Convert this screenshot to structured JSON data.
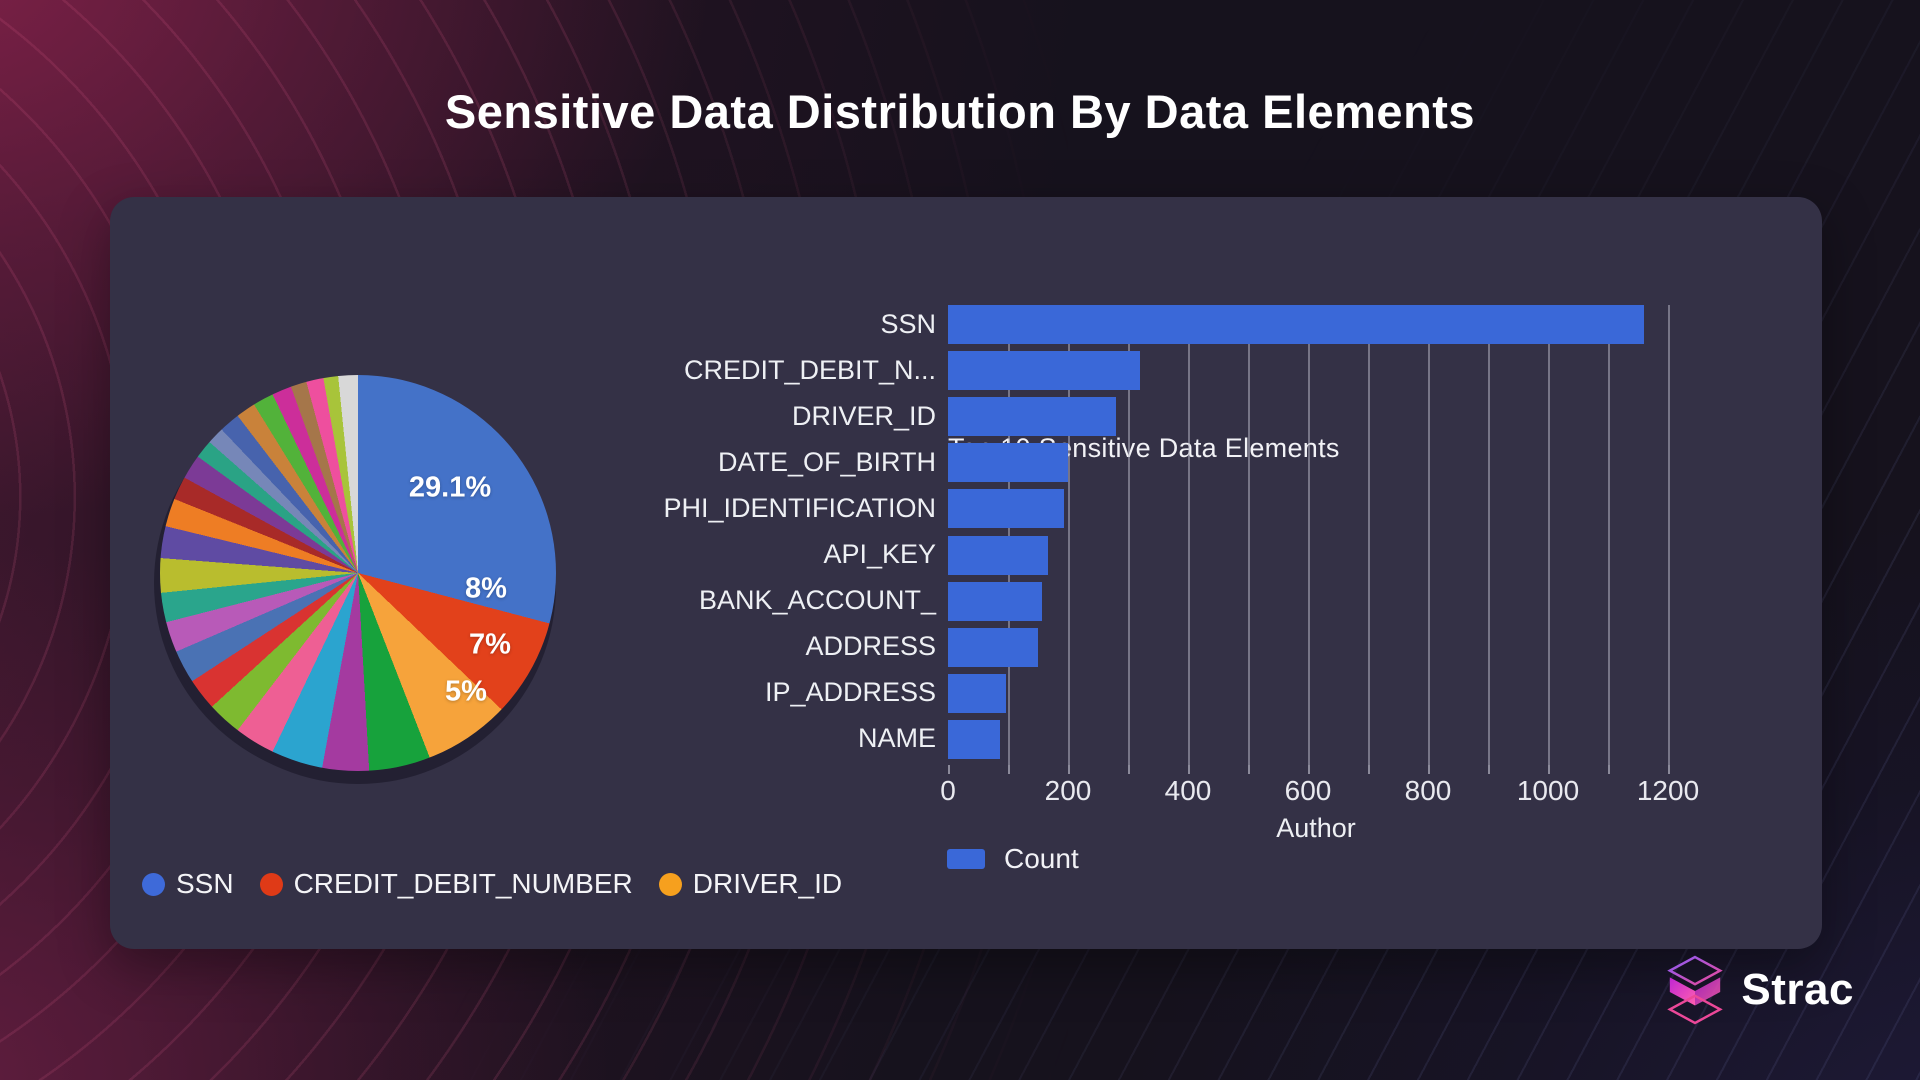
{
  "page_title": "Sensitive Data Distribution By Data Elements",
  "branding": {
    "name": "Strac"
  },
  "chart_data": [
    {
      "type": "pie",
      "slices": [
        {
          "label": "SSN",
          "pct": 29.1,
          "color": "#4472c8",
          "display_label": "29.1%"
        },
        {
          "label": "CREDIT_DEBIT_NUMBER",
          "pct": 8,
          "color": "#e2411b",
          "display_label": "8%"
        },
        {
          "label": "DRIVER_ID",
          "pct": 7,
          "color": "#f6a33b",
          "display_label": "7%"
        },
        {
          "label": "",
          "pct": 5,
          "color": "#17a23c",
          "display_label": "5%"
        },
        {
          "label": "",
          "pct": 3.8,
          "color": "#a43aa0"
        },
        {
          "label": "",
          "pct": 4.2,
          "color": "#2ba4cf"
        },
        {
          "label": "",
          "pct": 3.3,
          "color": "#ee5f94"
        },
        {
          "label": "",
          "pct": 2.8,
          "color": "#7eba30"
        },
        {
          "label": "",
          "pct": 2.6,
          "color": "#d93331"
        },
        {
          "label": "",
          "pct": 2.7,
          "color": "#4a72b4"
        },
        {
          "label": "",
          "pct": 2.5,
          "color": "#b85ab8"
        },
        {
          "label": "",
          "pct": 2.4,
          "color": "#2aa58c"
        },
        {
          "label": "",
          "pct": 2.8,
          "color": "#b9bd2e"
        },
        {
          "label": "",
          "pct": 2.6,
          "color": "#5f4ba3"
        },
        {
          "label": "",
          "pct": 2.3,
          "color": "#ee7d24"
        },
        {
          "label": "",
          "pct": 1.9,
          "color": "#a82a28"
        },
        {
          "label": "",
          "pct": 2.0,
          "color": "#7c3a96"
        },
        {
          "label": "",
          "pct": 1.5,
          "color": "#2aa385"
        },
        {
          "label": "",
          "pct": 1.4,
          "color": "#7687b8"
        },
        {
          "label": "",
          "pct": 1.7,
          "color": "#4763ad"
        },
        {
          "label": "",
          "pct": 1.6,
          "color": "#c9823a"
        },
        {
          "label": "",
          "pct": 1.7,
          "color": "#52b23a"
        },
        {
          "label": "",
          "pct": 1.6,
          "color": "#cc2e9a"
        },
        {
          "label": "",
          "pct": 1.3,
          "color": "#a5764a"
        },
        {
          "label": "",
          "pct": 1.4,
          "color": "#ee4f9e"
        },
        {
          "label": "",
          "pct": 1.2,
          "color": "#a8c43a"
        },
        {
          "label": "",
          "pct": 1.6,
          "color": "#d8d8d8"
        }
      ],
      "legend": [
        {
          "label": "SSN",
          "color": "#3e6ad9"
        },
        {
          "label": "CREDIT_DEBIT_NUMBER",
          "color": "#df3a17"
        },
        {
          "label": "DRIVER_ID",
          "color": "#f6a01e"
        }
      ]
    },
    {
      "type": "bar",
      "orientation": "horizontal",
      "title": "Top 10 Sensitive Data Elements",
      "categories": [
        "SSN",
        "CREDIT_DEBIT_N...",
        "DRIVER_ID",
        "DATE_OF_BIRTH",
        "PHI_IDENTIFICATION",
        "API_KEY",
        "BANK_ACCOUNT_",
        "ADDRESS",
        "IP_ADDRESS",
        "NAME"
      ],
      "values": [
        1160,
        320,
        280,
        200,
        193,
        167,
        156,
        150,
        97,
        87
      ],
      "series_name": "Count",
      "legend_label": "Count",
      "xlabel": "Author",
      "x_ticks": [
        0,
        200,
        400,
        600,
        800,
        1000,
        1200
      ],
      "xlim": [
        0,
        1240
      ],
      "gridline_step": 100,
      "grid": true,
      "legend_position": "bottom",
      "bar_color": "#3a68d8"
    }
  ]
}
